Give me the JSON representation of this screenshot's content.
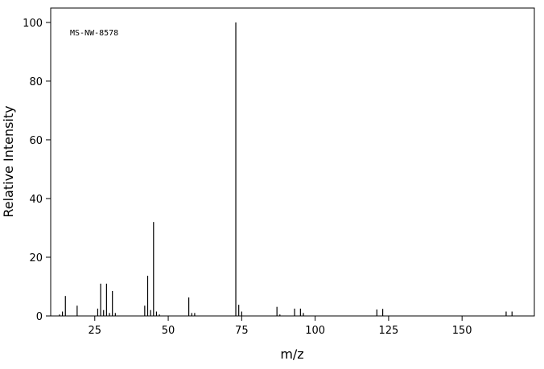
{
  "chart_data": {
    "type": "bar",
    "annotation": "MS-NW-8578",
    "x_label": "m/z",
    "y_label": "Relative Intensity",
    "x": [
      13,
      14,
      15,
      19,
      26,
      27,
      28,
      29,
      30,
      31,
      32,
      42,
      43,
      44,
      45,
      46,
      47,
      57,
      58,
      59,
      73,
      74,
      75,
      87,
      88,
      93,
      95,
      96,
      121,
      123,
      165,
      167
    ],
    "values": [
      0.5,
      1.5,
      6.8,
      3.5,
      2.5,
      11,
      2,
      11,
      1,
      8.5,
      1,
      3.5,
      13.7,
      2,
      32,
      1.5,
      0.5,
      6.3,
      1,
      1,
      100,
      3.8,
      1.5,
      3.1,
      0.5,
      2.5,
      2.5,
      1,
      2.2,
      2.4,
      1.5,
      1.5
    ],
    "color": "#000000",
    "xlim": [
      10,
      174.6
    ],
    "ylim": [
      0,
      104.9
    ],
    "xticks": [
      25,
      50,
      75,
      100,
      125,
      150
    ],
    "yticks": [
      0,
      20,
      40,
      60,
      80,
      100
    ]
  }
}
